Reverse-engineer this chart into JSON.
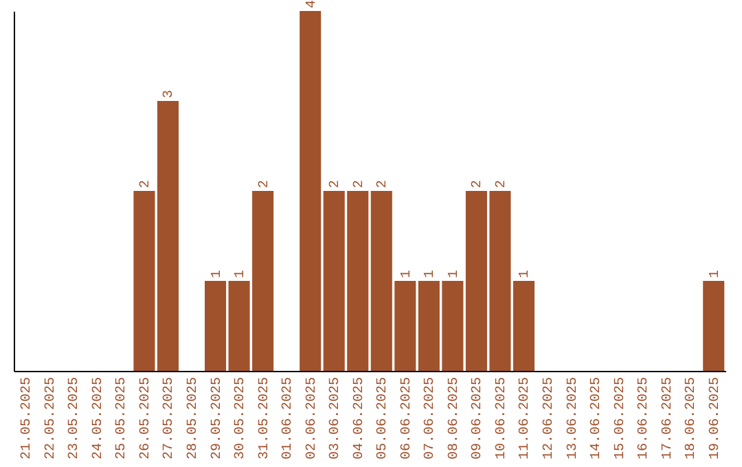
{
  "chart_data": {
    "type": "bar",
    "categories": [
      "21.05.2025",
      "22.05.2025",
      "23.05.2025",
      "24.05.2025",
      "25.05.2025",
      "26.05.2025",
      "27.05.2025",
      "28.05.2025",
      "29.05.2025",
      "30.05.2025",
      "31.05.2025",
      "01.06.2025",
      "02.06.2025",
      "03.06.2025",
      "04.06.2025",
      "05.06.2025",
      "06.06.2025",
      "07.06.2025",
      "08.06.2025",
      "09.06.2025",
      "10.06.2025",
      "11.06.2025",
      "12.06.2025",
      "13.06.2025",
      "14.06.2025",
      "15.06.2025",
      "16.06.2025",
      "17.06.2025",
      "18.06.2025",
      "19.06.2025"
    ],
    "values": [
      0,
      0,
      0,
      0,
      0,
      2,
      3,
      0,
      1,
      1,
      2,
      0,
      4,
      2,
      2,
      2,
      1,
      1,
      1,
      2,
      2,
      1,
      0,
      0,
      0,
      0,
      0,
      0,
      0,
      1
    ],
    "value_labels": [
      null,
      null,
      null,
      null,
      null,
      "2",
      "3",
      null,
      "1",
      "1",
      "2",
      null,
      "4",
      "2",
      "2",
      "2",
      "1",
      "1",
      "1",
      "2",
      "2",
      "1",
      null,
      null,
      null,
      null,
      null,
      null,
      null,
      "1"
    ],
    "color": "#a0522d",
    "grid": false
  }
}
